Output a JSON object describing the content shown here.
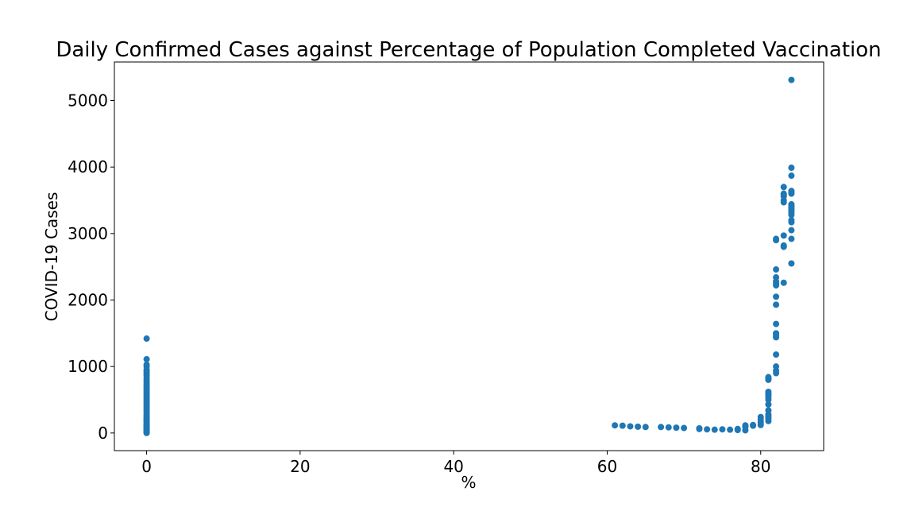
{
  "chart_data": {
    "type": "scatter",
    "title": "Daily Confirmed Cases against Percentage of Population Completed Vaccination",
    "xlabel": "%",
    "ylabel": "COVID-19 Cases",
    "xlim": [
      -4.2,
      88.2
    ],
    "ylim": [
      -265,
      5580
    ],
    "xticks": [
      0,
      20,
      40,
      60,
      80
    ],
    "yticks": [
      0,
      1000,
      2000,
      3000,
      4000,
      5000
    ],
    "grid": false,
    "legend": "none",
    "marker_color": "#1f77b4",
    "series": [
      {
        "x": [
          0,
          0,
          0,
          0,
          0,
          0,
          0,
          0,
          0,
          0,
          0,
          0,
          0,
          0,
          0,
          0,
          0,
          0,
          0,
          0,
          0,
          0,
          0,
          0,
          0,
          0,
          0,
          0,
          0,
          0,
          0,
          0,
          0,
          0,
          0,
          0,
          0,
          0,
          0,
          0,
          0,
          0,
          0,
          0,
          0,
          0,
          61,
          62,
          63,
          64,
          65,
          67,
          68,
          69,
          70,
          72,
          72,
          73,
          74,
          75,
          76,
          77,
          77,
          78,
          78,
          78,
          79,
          79,
          80,
          80,
          80,
          80,
          81,
          81,
          81,
          81,
          81,
          81,
          81,
          81,
          81,
          81,
          81,
          81,
          81,
          81,
          82,
          82,
          82,
          82,
          82,
          82,
          82,
          82,
          82,
          82,
          82,
          82,
          82,
          82,
          82,
          82,
          82,
          82,
          83,
          83,
          83,
          83,
          83,
          83,
          83,
          83,
          83,
          83,
          84,
          84,
          84,
          84,
          84,
          84,
          84,
          84,
          84,
          84,
          84,
          84,
          84,
          84,
          84,
          84,
          84,
          84
        ],
        "y": [
          1420,
          1110,
          1030,
          1000,
          950,
          920,
          890,
          860,
          820,
          790,
          760,
          730,
          700,
          670,
          640,
          610,
          580,
          550,
          520,
          490,
          460,
          430,
          400,
          370,
          340,
          310,
          280,
          250,
          220,
          190,
          160,
          130,
          110,
          90,
          70,
          50,
          30,
          10,
          0,
          15,
          45,
          85,
          125,
          175,
          210,
          255,
          115,
          110,
          100,
          95,
          90,
          90,
          85,
          80,
          75,
          70,
          60,
          55,
          50,
          55,
          50,
          45,
          60,
          40,
          90,
          115,
          110,
          120,
          120,
          160,
          200,
          240,
          180,
          220,
          250,
          280,
          340,
          430,
          500,
          540,
          570,
          590,
          620,
          800,
          820,
          840,
          900,
          940,
          1000,
          1180,
          1440,
          1500,
          1640,
          1930,
          2050,
          2220,
          2250,
          2280,
          2340,
          2460,
          2900,
          2920,
          1460,
          1490,
          2260,
          2800,
          2820,
          2970,
          3470,
          3500,
          3560,
          3580,
          3600,
          3700,
          2550,
          2920,
          3050,
          3170,
          3200,
          3280,
          3320,
          3370,
          3400,
          3420,
          3440,
          3600,
          3620,
          3640,
          3870,
          3990,
          3350,
          5310
        ]
      }
    ]
  }
}
